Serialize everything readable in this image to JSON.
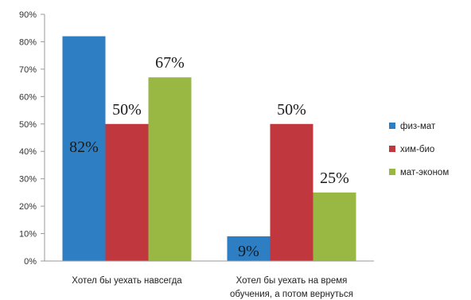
{
  "chart_data": {
    "type": "bar",
    "categories": [
      [
        "Хотел бы уехать навсегда"
      ],
      [
        "Хотел бы уехать на время",
        "обучения, а потом вернуться"
      ]
    ],
    "series": [
      {
        "name": "физ-мат",
        "color": "#2e7ec3",
        "values": [
          82,
          9
        ],
        "labels": [
          "82%",
          "9%"
        ]
      },
      {
        "name": "хим-био",
        "color": "#c1373e",
        "values": [
          50,
          50
        ],
        "labels": [
          "50%",
          "50%"
        ]
      },
      {
        "name": "мат-эконом",
        "color": "#98b743",
        "values": [
          67,
          25
        ],
        "labels": [
          "67%",
          "25%"
        ]
      }
    ],
    "ylim": [
      0,
      90
    ],
    "yticks": [
      0,
      10,
      20,
      30,
      40,
      50,
      60,
      70,
      80,
      90
    ],
    "ytick_labels": [
      "0%",
      "10%",
      "20%",
      "30%",
      "40%",
      "50%",
      "60%",
      "70%",
      "80%",
      "90%"
    ],
    "grid": false,
    "legend_position": "right"
  }
}
